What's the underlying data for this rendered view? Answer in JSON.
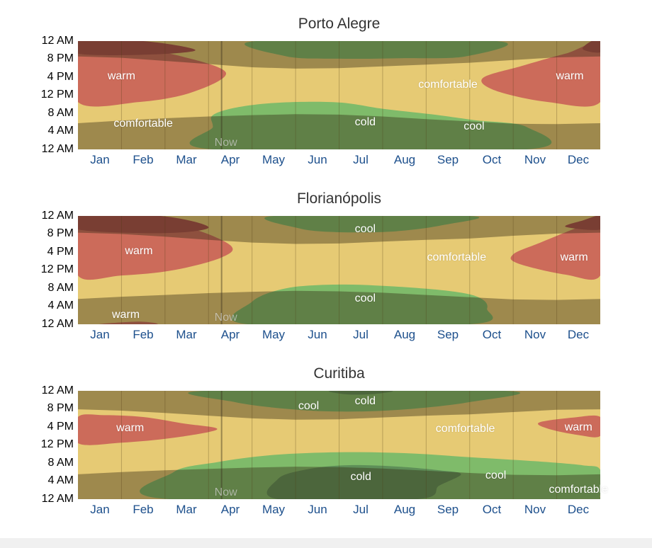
{
  "colors": {
    "comfortable": "#e6ca74",
    "warm": "#cc6b5a",
    "hot": "#a84e48",
    "cool": "#7fbb6a",
    "cold": "#5e8f58",
    "night_shade": "rgba(50,40,20,0.40)",
    "grid": "rgba(80,60,20,0.30)",
    "month_label": "#1c4f8c"
  },
  "chart_data": [
    {
      "type": "heatmap",
      "title": "Porto Alegre",
      "x_labels": [
        "Jan",
        "Feb",
        "Mar",
        "Apr",
        "May",
        "Jun",
        "Jul",
        "Aug",
        "Sep",
        "Oct",
        "Nov",
        "Dec"
      ],
      "y_labels": [
        "12 AM",
        "8 PM",
        "4 PM",
        "12 PM",
        "8 AM",
        "4 AM",
        "12 AM"
      ],
      "now_label": "Now",
      "now_month": 3.3,
      "sunrise_hours": [
        5.8,
        6.4,
        6.9,
        7.3,
        7.6,
        7.8,
        7.7,
        7.3,
        6.7,
        6.2,
        5.7,
        5.6,
        5.8
      ],
      "sunset_hours": [
        20.6,
        20.3,
        19.6,
        18.9,
        18.2,
        17.9,
        18.0,
        18.4,
        18.8,
        19.2,
        19.8,
        20.4,
        20.6
      ],
      "zones": [
        {
          "category": "cold",
          "label": "cold",
          "month_hours": [
            [
              4.9,
              7.3
            ],
            [
              5.1,
              8.0
            ],
            [
              6.7,
              8.0
            ],
            [
              7.6,
              7.3
            ],
            [
              8.0,
              6.6
            ],
            [
              7.6,
              5.6
            ],
            [
              6.7,
              4.9
            ],
            [
              5.7,
              3.8
            ],
            [
              4.9,
              2.7
            ],
            [
              4.8,
              1.5
            ],
            [
              5.1,
              0.5
            ],
            [
              5.7,
              0.0
            ]
          ]
        },
        {
          "category": "cool",
          "label": "cool",
          "month_hours": [
            [
              3.1,
              5.0
            ],
            [
              3.1,
              7.6
            ],
            [
              3.7,
              9.4
            ],
            [
              4.7,
              10.4
            ],
            [
              6.0,
              10.4
            ],
            [
              7.0,
              9.0
            ],
            [
              8.1,
              7.8
            ],
            [
              9.1,
              6.5
            ],
            [
              10.3,
              5.0
            ],
            [
              10.3,
              0.0
            ],
            [
              3.1,
              0.0
            ]
          ]
        },
        {
          "category": "cool",
          "label": "",
          "month_hours": [
            [
              4.1,
              24.0
            ],
            [
              4.8,
              20.6
            ],
            [
              6.0,
              20.1
            ],
            [
              7.4,
              20.2
            ],
            [
              8.9,
              20.6
            ],
            [
              9.6,
              24.0
            ]
          ]
        },
        {
          "category": "warm",
          "label": "warm",
          "month_hours": [
            [
              0.0,
              23.0
            ],
            [
              1.2,
              22.4
            ],
            [
              2.3,
              20.8
            ],
            [
              3.4,
              17.0
            ],
            [
              2.6,
              12.6
            ],
            [
              1.4,
              10.5
            ],
            [
              0.0,
              10.5
            ]
          ]
        },
        {
          "category": "warm",
          "label": "warm",
          "month_hours": [
            [
              12.0,
              10.5
            ],
            [
              10.8,
              10.5
            ],
            [
              9.6,
              13.0
            ],
            [
              9.3,
              15.8
            ],
            [
              10.2,
              18.5
            ],
            [
              11.2,
              21.2
            ],
            [
              12.0,
              23.0
            ]
          ]
        },
        {
          "category": "hot",
          "label": "",
          "month_hours": [
            [
              0.0,
              24.0
            ],
            [
              1.5,
              24.0
            ],
            [
              2.7,
              22.0
            ],
            [
              1.6,
              21.0
            ],
            [
              0.0,
              21.2
            ]
          ]
        },
        {
          "category": "hot",
          "label": "",
          "month_hours": [
            [
              12.0,
              24.0
            ],
            [
              11.8,
              24.0
            ],
            [
              11.6,
              22.2
            ],
            [
              12.0,
              21.5
            ]
          ]
        }
      ],
      "region_labels": [
        {
          "text": "warm",
          "month": 1.0,
          "hour": 16.2
        },
        {
          "text": "comfortable",
          "month": 1.5,
          "hour": 5.6
        },
        {
          "text": "cold",
          "month": 6.6,
          "hour": 6.0
        },
        {
          "text": "cool",
          "month": 9.1,
          "hour": 5.0
        },
        {
          "text": "comfortable",
          "month": 8.5,
          "hour": 14.3
        },
        {
          "text": "warm",
          "month": 11.3,
          "hour": 16.2
        }
      ]
    },
    {
      "type": "heatmap",
      "title": "Florianópolis",
      "x_labels": [
        "Jan",
        "Feb",
        "Mar",
        "Apr",
        "May",
        "Jun",
        "Jul",
        "Aug",
        "Sep",
        "Oct",
        "Nov",
        "Dec"
      ],
      "y_labels": [
        "12 AM",
        "8 PM",
        "4 PM",
        "12 PM",
        "8 AM",
        "4 AM",
        "12 AM"
      ],
      "now_label": "Now",
      "now_month": 3.3,
      "sunrise_hours": [
        5.6,
        6.1,
        6.5,
        6.9,
        7.2,
        7.4,
        7.3,
        7.0,
        6.5,
        6.0,
        5.5,
        5.4,
        5.6
      ],
      "sunset_hours": [
        20.3,
        20.0,
        19.4,
        18.7,
        18.1,
        17.8,
        17.9,
        18.3,
        18.7,
        19.0,
        19.6,
        20.1,
        20.3
      ],
      "zones": [
        {
          "category": "cool",
          "label": "cool",
          "month_hours": [
            [
              3.9,
              0.0
            ],
            [
              4.0,
              5.0
            ],
            [
              4.8,
              8.0
            ],
            [
              6.0,
              8.8
            ],
            [
              7.2,
              8.4
            ],
            [
              8.5,
              7.4
            ],
            [
              9.2,
              6.0
            ],
            [
              9.4,
              3.5
            ],
            [
              9.0,
              0.0
            ]
          ]
        },
        {
          "category": "cool",
          "label": "cool",
          "month_hours": [
            [
              4.5,
              24.0
            ],
            [
              5.1,
              21.2
            ],
            [
              6.0,
              20.4
            ],
            [
              7.3,
              20.6
            ],
            [
              8.4,
              22.0
            ],
            [
              9.0,
              24.0
            ]
          ]
        },
        {
          "category": "warm",
          "label": "warm",
          "month_hours": [
            [
              0.0,
              23.0
            ],
            [
              1.2,
              23.0
            ],
            [
              2.5,
              21.5
            ],
            [
              3.5,
              17.5
            ],
            [
              3.3,
              14.8
            ],
            [
              2.2,
              12.0
            ],
            [
              1.0,
              10.8
            ],
            [
              0.0,
              10.8
            ]
          ]
        },
        {
          "category": "warm",
          "label": "warm",
          "month_hours": [
            [
              12.0,
              10.8
            ],
            [
              11.2,
              11.0
            ],
            [
              10.1,
              13.5
            ],
            [
              10.0,
              15.5
            ],
            [
              10.6,
              18.0
            ],
            [
              11.5,
              21.5
            ],
            [
              12.0,
              23.0
            ]
          ]
        },
        {
          "category": "warm",
          "label": "warm",
          "month_hours": [
            [
              0.5,
              0.0
            ],
            [
              1.4,
              0.6
            ],
            [
              1.8,
              0.0
            ]
          ]
        },
        {
          "category": "hot",
          "label": "",
          "month_hours": [
            [
              0.0,
              24.0
            ],
            [
              1.9,
              24.0
            ],
            [
              3.0,
              21.5
            ],
            [
              2.0,
              20.2
            ],
            [
              0.0,
              21.0
            ]
          ]
        },
        {
          "category": "hot",
          "label": "",
          "month_hours": [
            [
              12.0,
              24.0
            ],
            [
              11.6,
              23.0
            ],
            [
              11.2,
              21.6
            ],
            [
              12.0,
              21.0
            ]
          ]
        }
      ],
      "region_labels": [
        {
          "text": "warm",
          "month": 1.4,
          "hour": 16.2
        },
        {
          "text": "cool",
          "month": 6.6,
          "hour": 21.0
        },
        {
          "text": "comfortable",
          "month": 8.7,
          "hour": 14.8
        },
        {
          "text": "warm",
          "month": 11.4,
          "hour": 14.8
        },
        {
          "text": "cool",
          "month": 6.6,
          "hour": 5.6
        },
        {
          "text": "warm",
          "month": 1.1,
          "hour": 2.0
        }
      ]
    },
    {
      "type": "heatmap",
      "title": "Curitiba",
      "x_labels": [
        "Jan",
        "Feb",
        "Mar",
        "Apr",
        "May",
        "Jun",
        "Jul",
        "Aug",
        "Sep",
        "Oct",
        "Nov",
        "Dec"
      ],
      "y_labels": [
        "12 AM",
        "8 PM",
        "4 PM",
        "12 PM",
        "8 AM",
        "4 AM",
        "12 AM"
      ],
      "now_label": "Now",
      "now_month": 3.3,
      "sunrise_hours": [
        5.5,
        6.0,
        6.4,
        6.7,
        7.0,
        7.2,
        7.1,
        6.8,
        6.3,
        5.8,
        5.4,
        5.3,
        5.5
      ],
      "sunset_hours": [
        19.9,
        19.6,
        19.1,
        18.5,
        17.9,
        17.6,
        17.7,
        18.1,
        18.5,
        18.8,
        19.3,
        19.8,
        19.9
      ],
      "zones": [
        {
          "category": "cool",
          "label": "cool",
          "month_hours": [
            [
              2.1,
              0.0
            ],
            [
              2.2,
              6.0
            ],
            [
              3.2,
              8.2
            ],
            [
              4.5,
              9.8
            ],
            [
              6.0,
              10.4
            ],
            [
              7.5,
              10.2
            ],
            [
              9.0,
              9.3
            ],
            [
              10.5,
              8.4
            ],
            [
              11.6,
              7.5
            ],
            [
              12.0,
              6.5
            ],
            [
              12.0,
              0.8
            ],
            [
              11.2,
              0.0
            ]
          ]
        },
        {
          "category": "cool",
          "label": "cool",
          "month_hours": [
            [
              2.9,
              24.0
            ],
            [
              3.6,
              21.5
            ],
            [
              4.8,
              20.0
            ],
            [
              6.0,
              19.4
            ],
            [
              7.4,
              19.8
            ],
            [
              9.0,
              21.5
            ],
            [
              9.8,
              24.0
            ]
          ]
        },
        {
          "category": "cold",
          "label": "cold",
          "month_hours": [
            [
              4.6,
              0.0
            ],
            [
              4.6,
              4.5
            ],
            [
              5.2,
              6.5
            ],
            [
              6.1,
              7.5
            ],
            [
              7.2,
              7.3
            ],
            [
              8.3,
              6.4
            ],
            [
              8.8,
              5.5
            ],
            [
              8.3,
              3.0
            ],
            [
              7.8,
              0.0
            ]
          ]
        },
        {
          "category": "cold",
          "label": "cold",
          "month_hours": [
            [
              5.8,
              24.0
            ],
            [
              6.2,
              23.2
            ],
            [
              6.8,
              23.3
            ],
            [
              7.2,
              24.0
            ]
          ]
        },
        {
          "category": "warm",
          "label": "warm",
          "month_hours": [
            [
              0.0,
              18.2
            ],
            [
              0.6,
              18.6
            ],
            [
              1.5,
              18.2
            ],
            [
              2.4,
              16.8
            ],
            [
              3.2,
              15.5
            ],
            [
              2.2,
              13.6
            ],
            [
              1.0,
              12.5
            ],
            [
              0.0,
              12.4
            ]
          ]
        },
        {
          "category": "warm",
          "label": "warm",
          "month_hours": [
            [
              12.0,
              18.2
            ],
            [
              11.4,
              18.1
            ],
            [
              10.6,
              17.0
            ],
            [
              10.8,
              15.6
            ],
            [
              11.5,
              14.2
            ],
            [
              12.0,
              14.0
            ]
          ]
        }
      ],
      "region_labels": [
        {
          "text": "warm",
          "month": 1.2,
          "hour": 15.7
        },
        {
          "text": "cool",
          "month": 5.3,
          "hour": 20.5
        },
        {
          "text": "cold",
          "month": 6.6,
          "hour": 21.7
        },
        {
          "text": "comfortable",
          "month": 8.9,
          "hour": 15.5
        },
        {
          "text": "warm",
          "month": 11.5,
          "hour": 15.9
        },
        {
          "text": "cold",
          "month": 6.5,
          "hour": 4.8
        },
        {
          "text": "cool",
          "month": 9.6,
          "hour": 5.1
        },
        {
          "text": "comfortable",
          "month": 11.5,
          "hour": 2.0
        }
      ]
    }
  ]
}
